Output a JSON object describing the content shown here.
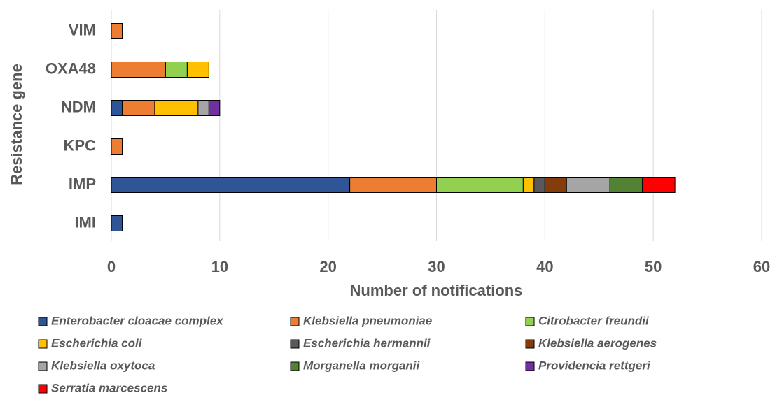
{
  "chart_data": {
    "type": "stacked-bar-horizontal",
    "categories": [
      "VIM",
      "OXA48",
      "NDM",
      "KPC",
      "IMP",
      "IMI"
    ],
    "xlabel": "Number of notifications",
    "ylabel": "Resistance gene",
    "xlim": [
      0,
      60
    ],
    "xticks": [
      0,
      10,
      20,
      30,
      40,
      50,
      60
    ],
    "grid": true,
    "series": [
      {
        "name": "Enterobacter cloacae complex",
        "color": "#2f5597",
        "values": [
          0,
          0,
          1,
          0,
          22,
          1
        ]
      },
      {
        "name": "Klebsiella pneumoniae",
        "color": "#ed7d31",
        "values": [
          1,
          5,
          3,
          1,
          8,
          0
        ]
      },
      {
        "name": "Citrobacter freundii",
        "color": "#92d050",
        "values": [
          0,
          2,
          0,
          0,
          8,
          0
        ]
      },
      {
        "name": "Escherichia coli",
        "color": "#ffc000",
        "values": [
          0,
          2,
          4,
          0,
          1,
          0
        ]
      },
      {
        "name": "Escherichia hermannii",
        "color": "#595959",
        "values": [
          0,
          0,
          0,
          0,
          1,
          0
        ]
      },
      {
        "name": "Klebsiella aerogenes",
        "color": "#843c0c",
        "values": [
          0,
          0,
          0,
          0,
          2,
          0
        ]
      },
      {
        "name": "Klebsiella oxytoca",
        "color": "#a5a5a5",
        "values": [
          0,
          0,
          1,
          0,
          4,
          0
        ]
      },
      {
        "name": "Morganella morganii",
        "color": "#548235",
        "values": [
          0,
          0,
          0,
          0,
          3,
          0
        ]
      },
      {
        "name": "Providencia rettgeri",
        "color": "#7030a0",
        "values": [
          0,
          0,
          1,
          0,
          0,
          0
        ]
      },
      {
        "name": "Serratia marcescens",
        "color": "#ff0000",
        "values": [
          0,
          0,
          0,
          0,
          3,
          0
        ]
      }
    ]
  }
}
